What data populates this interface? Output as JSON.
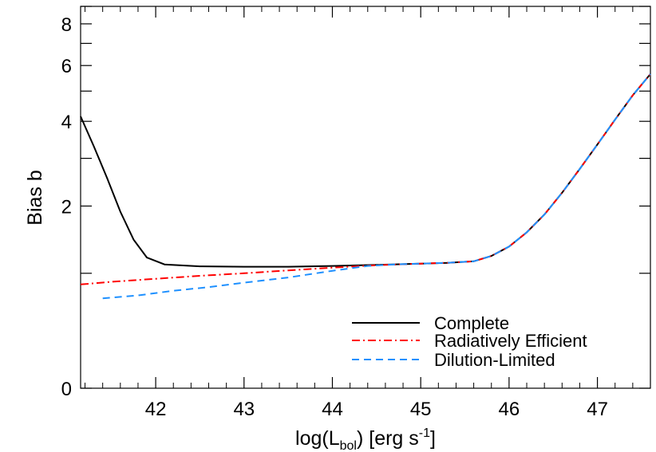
{
  "chart_data": {
    "type": "line",
    "xlabel": {
      "main": "log(L",
      "sub": "bol",
      "mid": ")  [erg s",
      "sup": "-1",
      "end": "]"
    },
    "ylabel": "Bias b",
    "xlim": [
      41.15,
      47.6
    ],
    "ylim": [
      0,
      9
    ],
    "y_scale": "log(1+b)",
    "x_ticks": [
      42,
      43,
      44,
      45,
      46,
      47
    ],
    "x_tick_labels": [
      "42",
      "43",
      "44",
      "45",
      "46",
      "47"
    ],
    "y_labeled_ticks": [
      0,
      2,
      4,
      6,
      8
    ],
    "y_tick_labels": [
      "0",
      "2",
      "4",
      "6",
      "8"
    ],
    "y_unlabeled_ticks": [
      1,
      3,
      5,
      7,
      9
    ],
    "grid": false,
    "legend_position": "bottom-right",
    "series": [
      {
        "name": "Complete",
        "color": "#000000",
        "dash": "solid",
        "points": [
          [
            41.15,
            4.15
          ],
          [
            41.3,
            3.3
          ],
          [
            41.45,
            2.55
          ],
          [
            41.6,
            1.9
          ],
          [
            41.75,
            1.45
          ],
          [
            41.9,
            1.2
          ],
          [
            42.1,
            1.11
          ],
          [
            42.5,
            1.085
          ],
          [
            43.0,
            1.08
          ],
          [
            43.5,
            1.08
          ],
          [
            44.0,
            1.09
          ],
          [
            44.5,
            1.105
          ],
          [
            45.0,
            1.12
          ],
          [
            45.3,
            1.13
          ],
          [
            45.6,
            1.15
          ],
          [
            45.8,
            1.22
          ],
          [
            46.0,
            1.35
          ],
          [
            46.2,
            1.56
          ],
          [
            46.4,
            1.85
          ],
          [
            46.6,
            2.25
          ],
          [
            46.8,
            2.75
          ],
          [
            47.0,
            3.35
          ],
          [
            47.2,
            4.05
          ],
          [
            47.4,
            4.85
          ],
          [
            47.6,
            5.65
          ]
        ]
      },
      {
        "name": "Radiatively Efficient",
        "color": "#ff0000",
        "dash": "dashdot",
        "points": [
          [
            41.15,
            0.87
          ],
          [
            41.5,
            0.9
          ],
          [
            42.0,
            0.935
          ],
          [
            42.5,
            0.97
          ],
          [
            43.0,
            1.0
          ],
          [
            43.5,
            1.035
          ],
          [
            44.0,
            1.07
          ],
          [
            44.5,
            1.1
          ],
          [
            45.0,
            1.12
          ],
          [
            45.3,
            1.13
          ],
          [
            45.6,
            1.15
          ],
          [
            45.8,
            1.22
          ],
          [
            46.0,
            1.35
          ],
          [
            46.2,
            1.56
          ],
          [
            46.4,
            1.85
          ],
          [
            46.6,
            2.25
          ],
          [
            46.8,
            2.75
          ],
          [
            47.0,
            3.35
          ],
          [
            47.2,
            4.05
          ],
          [
            47.4,
            4.85
          ],
          [
            47.6,
            5.65
          ]
        ]
      },
      {
        "name": "Dilution-Limited",
        "color": "#1e90ff",
        "dash": "dashed",
        "points": [
          [
            41.4,
            0.72
          ],
          [
            41.8,
            0.75
          ],
          [
            42.2,
            0.8
          ],
          [
            42.6,
            0.84
          ],
          [
            43.0,
            0.89
          ],
          [
            43.5,
            0.95
          ],
          [
            44.0,
            1.03
          ],
          [
            44.4,
            1.09
          ],
          [
            44.7,
            1.11
          ],
          [
            45.0,
            1.12
          ],
          [
            45.3,
            1.13
          ],
          [
            45.6,
            1.15
          ],
          [
            45.8,
            1.22
          ],
          [
            46.0,
            1.35
          ],
          [
            46.2,
            1.56
          ],
          [
            46.4,
            1.85
          ],
          [
            46.6,
            2.25
          ],
          [
            46.8,
            2.75
          ],
          [
            47.0,
            3.35
          ],
          [
            47.2,
            4.05
          ],
          [
            47.4,
            4.85
          ],
          [
            47.6,
            5.65
          ]
        ]
      }
    ]
  }
}
